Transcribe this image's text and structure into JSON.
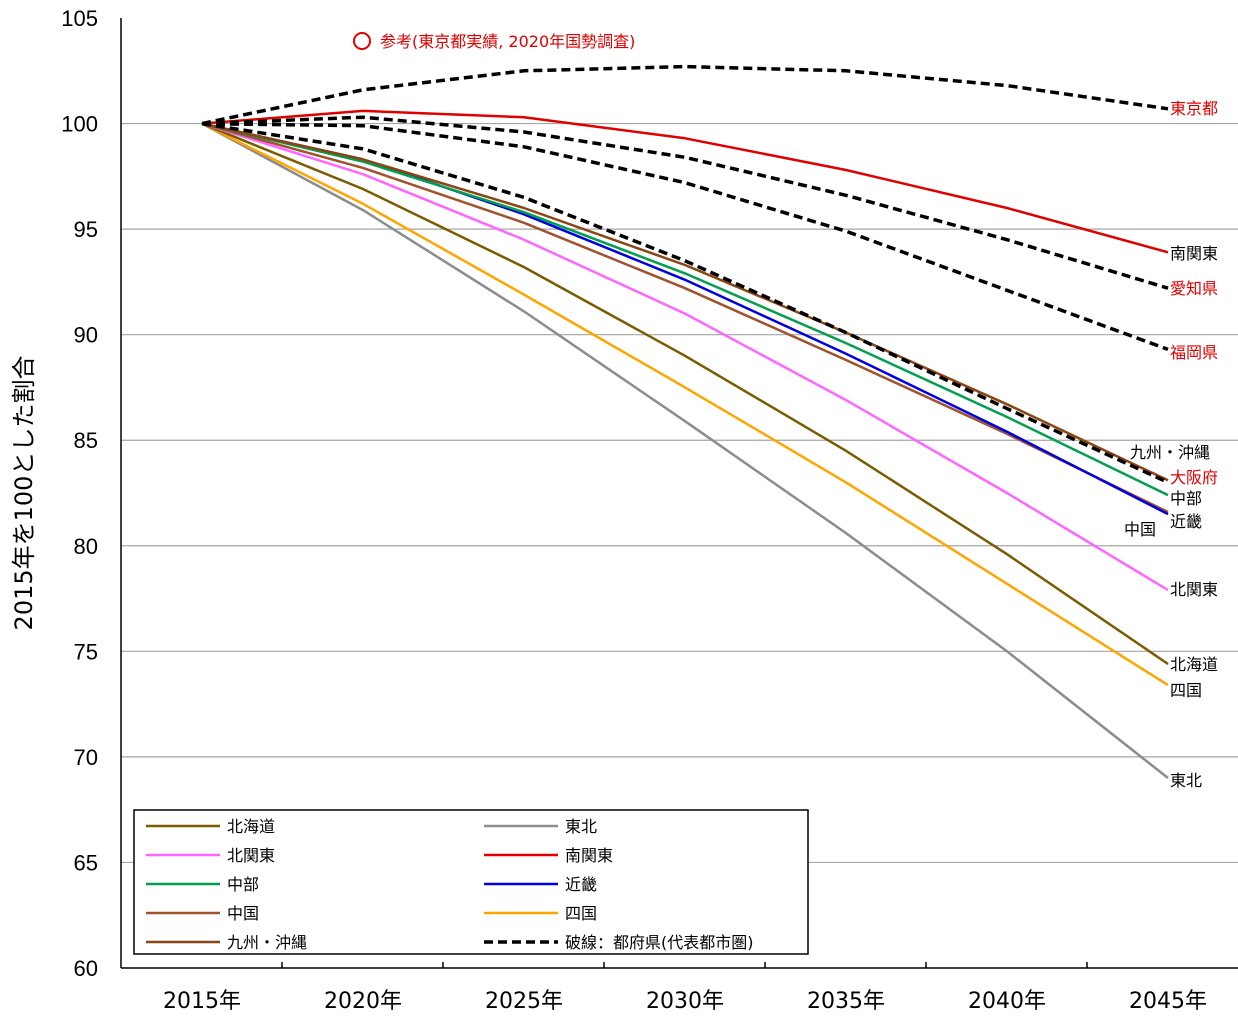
{
  "chart_data": {
    "type": "line",
    "ylabel": "2015年を100とした割合",
    "ylim": [
      60,
      105
    ],
    "yticks": [
      60,
      65,
      70,
      75,
      80,
      85,
      90,
      95,
      100,
      105
    ],
    "x": [
      2015,
      2020,
      2025,
      2030,
      2035,
      2040,
      2045
    ],
    "xtick_labels": [
      "2015年",
      "2020年",
      "2025年",
      "2030年",
      "2035年",
      "2040年",
      "2045年"
    ],
    "grid": "horizontal",
    "legend_position": "bottom-left",
    "note": "参考(東京都実績, 2020年国勢調査)",
    "note_color": "#e00000",
    "series": [
      {
        "name": "北海道",
        "color": "#7a5c00",
        "dashed": false,
        "values": [
          100,
          96.9,
          93.2,
          89.0,
          84.5,
          79.6,
          74.4
        ],
        "end_label": "北海道",
        "label_color": "#000000"
      },
      {
        "name": "東北",
        "color": "#8c8c8c",
        "dashed": false,
        "values": [
          100,
          95.9,
          91.1,
          85.9,
          80.6,
          75.0,
          69.0
        ],
        "end_label": "東北",
        "label_color": "#000000"
      },
      {
        "name": "北関東",
        "color": "#ff66ff",
        "dashed": false,
        "values": [
          100,
          97.6,
          94.5,
          91.0,
          86.9,
          82.5,
          77.9
        ],
        "end_label": "北関東",
        "label_color": "#000000"
      },
      {
        "name": "南関東",
        "color": "#e00000",
        "dashed": false,
        "values": [
          100,
          100.6,
          100.3,
          99.3,
          97.8,
          96.0,
          93.9
        ],
        "end_label": "南関東",
        "label_color": "#000000"
      },
      {
        "name": "中部",
        "color": "#00a050",
        "dashed": false,
        "values": [
          100,
          98.2,
          95.8,
          92.9,
          89.6,
          86.1,
          82.4
        ],
        "end_label": "中部",
        "label_color": "#000000"
      },
      {
        "name": "近畿",
        "color": "#0000e0",
        "dashed": false,
        "values": [
          100,
          98.3,
          95.7,
          92.6,
          89.1,
          85.4,
          81.5
        ],
        "end_label": "近畿",
        "label_color": "#000000"
      },
      {
        "name": "中国",
        "color": "#a0522d",
        "dashed": false,
        "values": [
          100,
          97.9,
          95.3,
          92.2,
          88.8,
          85.3,
          81.6
        ],
        "end_label": "中国",
        "label_color": "#000000"
      },
      {
        "name": "四国",
        "color": "#ffa500",
        "dashed": false,
        "values": [
          100,
          96.2,
          91.9,
          87.5,
          83.0,
          78.2,
          73.4
        ],
        "end_label": "四国",
        "label_color": "#000000"
      },
      {
        "name": "九州・沖縄",
        "color": "#8b4513",
        "dashed": false,
        "values": [
          100,
          98.3,
          96.0,
          93.3,
          90.1,
          86.7,
          83.1
        ],
        "end_label": "九州・沖縄",
        "label_color": "#000000"
      },
      {
        "name": "東京都",
        "color": "#000000",
        "dashed": true,
        "values": [
          100,
          101.6,
          102.5,
          102.7,
          102.5,
          101.8,
          100.7
        ],
        "end_label": "東京都",
        "label_color": "#e00000"
      },
      {
        "name": "愛知県",
        "color": "#000000",
        "dashed": true,
        "values": [
          100,
          100.3,
          99.6,
          98.4,
          96.6,
          94.5,
          92.2
        ],
        "end_label": "愛知県",
        "label_color": "#e00000"
      },
      {
        "name": "福岡県",
        "color": "#000000",
        "dashed": true,
        "values": [
          100,
          99.9,
          98.9,
          97.2,
          94.9,
          92.1,
          89.3
        ],
        "end_label": "福岡県",
        "label_color": "#e00000"
      },
      {
        "name": "大阪府",
        "color": "#000000",
        "dashed": true,
        "values": [
          100,
          98.8,
          96.5,
          93.5,
          90.1,
          86.5,
          83.0
        ],
        "end_label": "大阪府",
        "label_color": "#e00000"
      }
    ],
    "legend": [
      {
        "label": "北海道",
        "color": "#7a5c00",
        "dashed": false
      },
      {
        "label": "東北",
        "color": "#8c8c8c",
        "dashed": false
      },
      {
        "label": "北関東",
        "color": "#ff66ff",
        "dashed": false
      },
      {
        "label": "南関東",
        "color": "#e00000",
        "dashed": false
      },
      {
        "label": "中部",
        "color": "#00a050",
        "dashed": false
      },
      {
        "label": "近畿",
        "color": "#0000e0",
        "dashed": false
      },
      {
        "label": "中国",
        "color": "#a0522d",
        "dashed": false
      },
      {
        "label": "四国",
        "color": "#ffa500",
        "dashed": false
      },
      {
        "label": "九州・沖縄",
        "color": "#8b4513",
        "dashed": false
      },
      {
        "label": "破線：都府県(代表都市圏)",
        "color": "#000000",
        "dashed": true
      }
    ]
  }
}
